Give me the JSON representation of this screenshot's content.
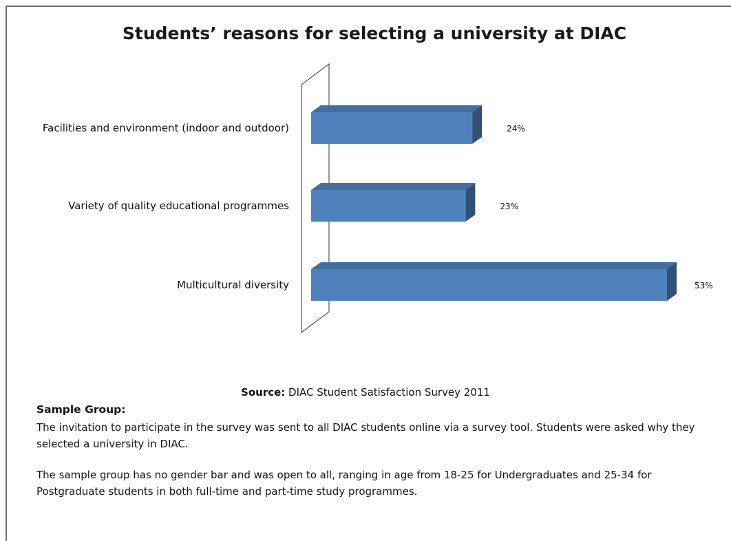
{
  "chart_data": {
    "type": "bar",
    "orientation": "horizontal",
    "style": "3d",
    "title": "Students’ reasons for selecting a university at DIAC",
    "categories": [
      "Facilities and environment (indoor and outdoor)",
      "Variety of quality educational programmes",
      "Multicultural diversity"
    ],
    "values": [
      24,
      23,
      53
    ],
    "value_labels": [
      "24%",
      "23%",
      "53%"
    ],
    "bar_color": "#4f81bd",
    "grid": false,
    "legend": "none"
  },
  "source": {
    "label": "Source:",
    "text": " DIAC Student Satisfaction Survey 2011"
  },
  "sample_group": {
    "heading": "Sample Group:",
    "paragraph_1": "The invitation to participate in the survey was sent to all DIAC students online via a survey tool. Students were asked why they selected a university in DIAC.",
    "paragraph_2": "The sample group has no gender bar and was open to all, ranging in age from 18-25 for Undergraduates and 25-34 for Postgraduate students in both full-time and part-time study programmes."
  }
}
